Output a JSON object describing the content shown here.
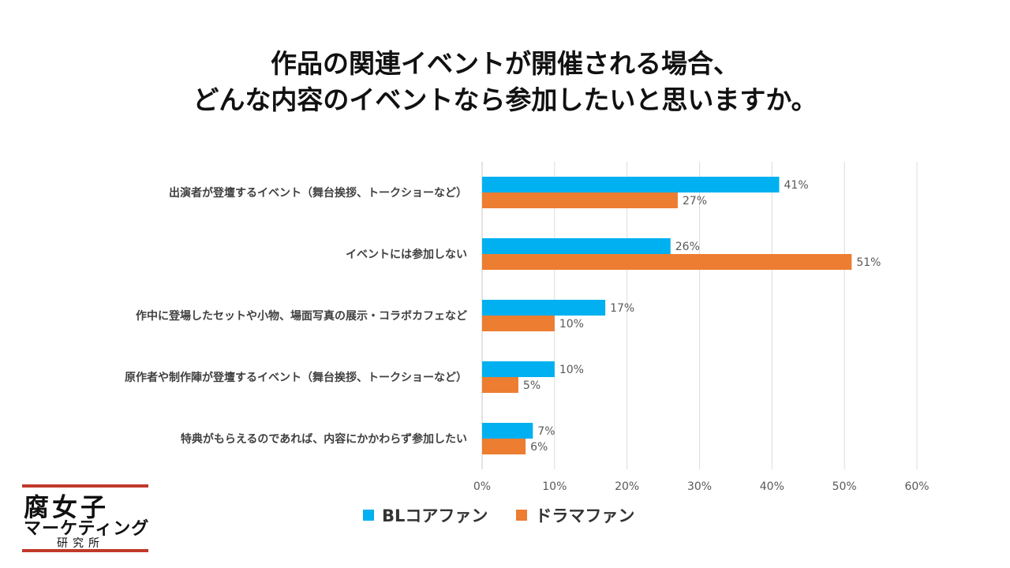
{
  "title": {
    "line1": "作品の関連イベントが開催される場合、",
    "line2": "どんな内容のイベントなら参加したいと思いますか。"
  },
  "chart_data": {
    "type": "bar",
    "orientation": "horizontal",
    "categories": [
      "出演者が登壇するイベント（舞台挨拶、トークショーなど）",
      "イベントには参加しない",
      "作中に登場したセットや小物、場面写真の展示・コラボカフェなど",
      "原作者や制作陣が登壇するイベント（舞台挨拶、トークショーなど）",
      "特典がもらえるのであれば、内容にかかわらず参加したい"
    ],
    "series": [
      {
        "name": "BLコアファン",
        "color": "#00B0F0",
        "values": [
          41,
          26,
          17,
          10,
          7
        ]
      },
      {
        "name": "ドラマファン",
        "color": "#ED7D31",
        "values": [
          27,
          51,
          10,
          5,
          6
        ]
      }
    ],
    "value_suffix": "%",
    "xlim": [
      0,
      60
    ],
    "xticks": [
      "0%",
      "10%",
      "20%",
      "30%",
      "40%",
      "50%",
      "60%"
    ],
    "grid": true,
    "legend_position": "bottom"
  },
  "legend": {
    "items": [
      {
        "label": "BLコアファン",
        "color": "#00B0F0"
      },
      {
        "label": "ドラマファン",
        "color": "#ED7D31"
      }
    ]
  },
  "logo": {
    "line1": "腐女子",
    "line2": "マーケティング",
    "line3": "研究所"
  }
}
